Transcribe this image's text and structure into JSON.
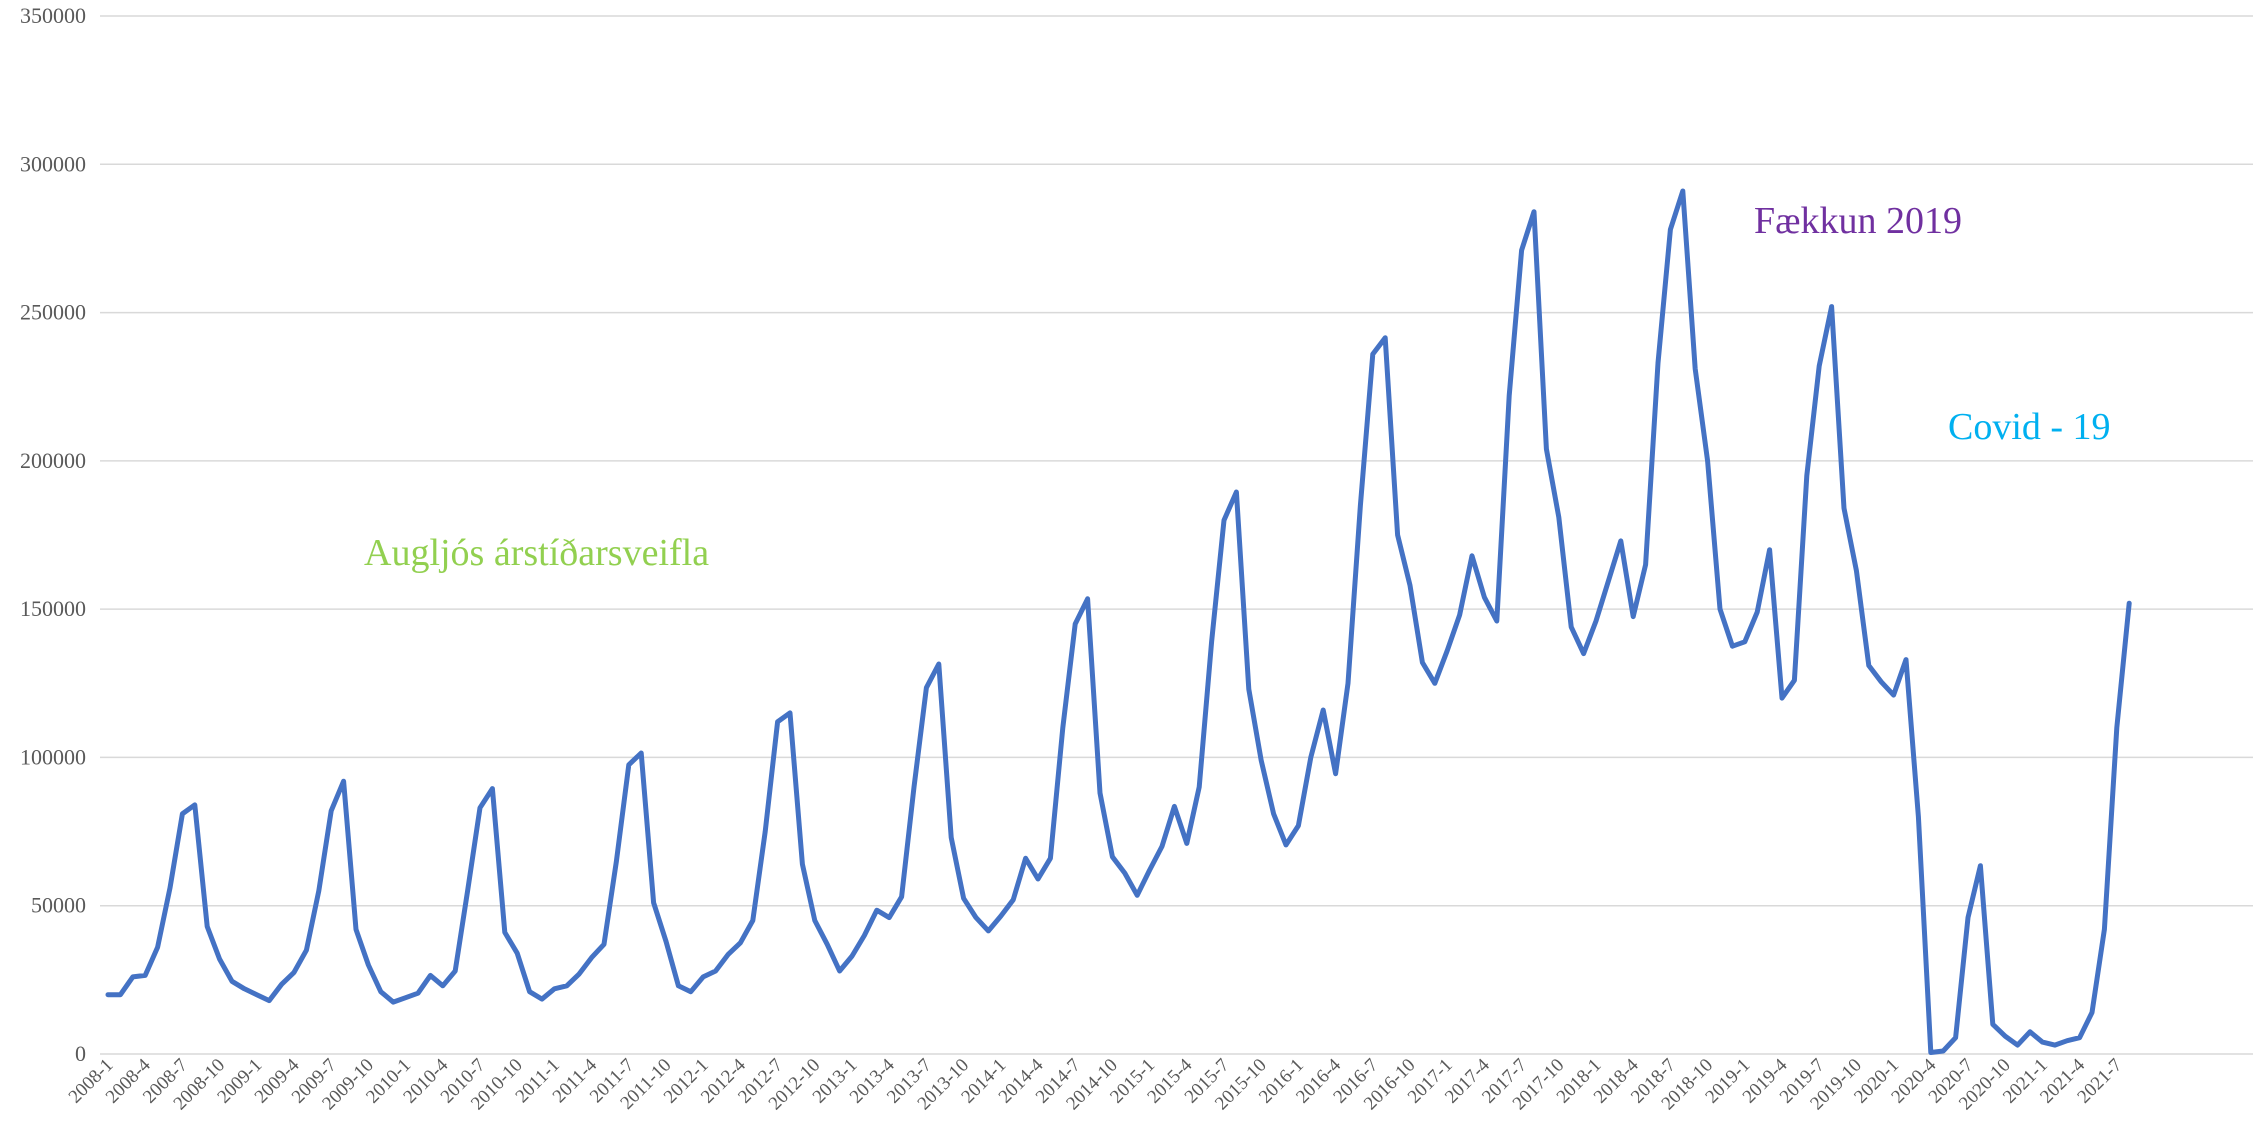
{
  "chart_data": {
    "type": "line",
    "title": "",
    "xlabel": "",
    "ylabel": "",
    "ylim": [
      0,
      350000
    ],
    "y_ticks": [
      0,
      50000,
      100000,
      150000,
      200000,
      250000,
      300000,
      350000
    ],
    "y_tick_labels": [
      "0",
      "50000",
      "100000",
      "150000",
      "200000",
      "250000",
      "300000",
      "350000"
    ],
    "grid": "horizontal",
    "x_tick_labels": [
      "2008-1",
      "2008-4",
      "2008-7",
      "2008-10",
      "2009-1",
      "2009-4",
      "2009-7",
      "2009-10",
      "2010-1",
      "2010-4",
      "2010-7",
      "2010-10",
      "2011-1",
      "2011-4",
      "2011-7",
      "2011-10",
      "2012-1",
      "2012-4",
      "2012-7",
      "2012-10",
      "2013-1",
      "2013-4",
      "2013-7",
      "2013-10",
      "2014-1",
      "2014-4",
      "2014-7",
      "2014-10",
      "2015-1",
      "2015-4",
      "2015-7",
      "2015-10",
      "2016-1",
      "2016-4",
      "2016-7",
      "2016-10",
      "2017-1",
      "2017-4",
      "2017-7",
      "2017-10",
      "2018-1",
      "2018-4",
      "2018-7",
      "2018-10",
      "2019-1",
      "2019-4",
      "2019-7",
      "2019-10",
      "2020-1",
      "2020-4",
      "2020-7",
      "2020-10",
      "2021-1",
      "2021-4",
      "2021-7"
    ],
    "line_color": "#4472c4",
    "series": [
      {
        "start": "2008-1",
        "frequency": "monthly",
        "values": [
          20000,
          20000,
          26000,
          26500,
          36000,
          56000,
          81000,
          84000,
          43000,
          32000,
          24500,
          22000,
          20000,
          18000,
          23500,
          27500,
          35000,
          55000,
          82000,
          92000,
          42000,
          30000,
          21000,
          17500,
          19000,
          20500,
          26500,
          23000,
          28000,
          55000,
          83000,
          89500,
          41000,
          34000,
          21000,
          18500,
          22000,
          23000,
          27000,
          32500,
          37000,
          65000,
          97500,
          101500,
          51000,
          38000,
          23000,
          21000,
          26000,
          28000,
          33500,
          37500,
          45000,
          75000,
          112000,
          115000,
          64000,
          45000,
          37000,
          28000,
          33000,
          40000,
          48500,
          46000,
          53000,
          90000,
          123500,
          131500,
          73000,
          52500,
          46000,
          41500,
          46500,
          52000,
          66000,
          59000,
          66000,
          110000,
          145000,
          153500,
          88000,
          66500,
          61000,
          53500,
          62000,
          70000,
          83500,
          71000,
          90000,
          139000,
          180000,
          189500,
          123000,
          99000,
          81000,
          70500,
          77000,
          100000,
          116000,
          94500,
          125000,
          185000,
          236000,
          241500,
          175000,
          158000,
          132000,
          125000,
          136000,
          148000,
          168000,
          154000,
          146000,
          222000,
          271000,
          284000,
          204000,
          181000,
          144000,
          135000,
          146000,
          159500,
          173000,
          147500,
          165000,
          233000,
          278000,
          291000,
          231000,
          200000,
          150000,
          137500,
          139000,
          149000,
          170000,
          120000,
          126000,
          195000,
          232000,
          252000,
          184000,
          163000,
          131000,
          125500,
          121000,
          133000,
          80000,
          500,
          1000,
          5500,
          46000,
          63500,
          10000,
          6000,
          3000,
          7500,
          4000,
          3000,
          4500,
          5500,
          14000,
          42000,
          110000,
          152000
        ]
      }
    ],
    "annotations": [
      {
        "text": "Augljós árstíðarsveifla",
        "color": "#92d050"
      },
      {
        "text": "Fækkun 2019",
        "color": "#7030a0"
      },
      {
        "text": "Covid - 19",
        "color": "#00b0f0"
      }
    ]
  }
}
